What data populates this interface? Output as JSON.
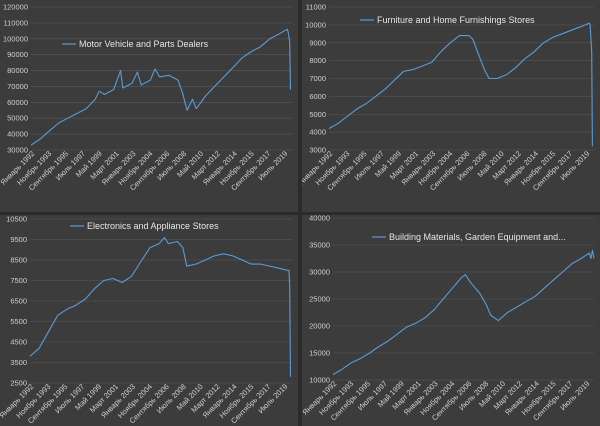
{
  "chart_data": [
    {
      "type": "line",
      "title": "",
      "series": [
        {
          "name": "Motor Vehicle and Parts Dealers"
        }
      ],
      "ylim": [
        30000,
        120000
      ],
      "yticks": [
        30000,
        40000,
        50000,
        60000,
        70000,
        80000,
        90000,
        100000,
        110000,
        120000
      ],
      "x_tick_labels": [
        "Январь 1992",
        "Ноябрь 1993",
        "Сентябрь 1995",
        "Июль 1997",
        "Май 1999",
        "Март 2001",
        "Январь 2003",
        "Ноябрь 2004",
        "Сентябрь 2006",
        "Июль 2008",
        "Май 2010",
        "Март 2012",
        "Январь 2014",
        "Ноябрь 2015",
        "Сентябрь 2017",
        "Июль 2019"
      ],
      "x_range": [
        "1992-01",
        "2020-06"
      ],
      "points": [
        [
          "1992-01",
          33000
        ],
        [
          "1993-01",
          37000
        ],
        [
          "1994-01",
          42000
        ],
        [
          "1995-01",
          47000
        ],
        [
          "1996-01",
          50000
        ],
        [
          "1997-01",
          53000
        ],
        [
          "1998-01",
          56000
        ],
        [
          "1999-01",
          62000
        ],
        [
          "1999-06",
          67000
        ],
        [
          "2000-01",
          65000
        ],
        [
          "2001-01",
          68000
        ],
        [
          "2001-10",
          80000
        ],
        [
          "2002-01",
          69000
        ],
        [
          "2003-01",
          72000
        ],
        [
          "2003-08",
          79000
        ],
        [
          "2004-01",
          71000
        ],
        [
          "2005-01",
          74000
        ],
        [
          "2005-07",
          81000
        ],
        [
          "2006-01",
          76000
        ],
        [
          "2007-01",
          77000
        ],
        [
          "2008-01",
          74000
        ],
        [
          "2008-07",
          66000
        ],
        [
          "2009-01",
          55000
        ],
        [
          "2009-08",
          62000
        ],
        [
          "2010-01",
          56000
        ],
        [
          "2011-01",
          64000
        ],
        [
          "2012-01",
          70000
        ],
        [
          "2013-01",
          76000
        ],
        [
          "2014-01",
          82000
        ],
        [
          "2015-01",
          88000
        ],
        [
          "2016-01",
          92000
        ],
        [
          "2017-01",
          95000
        ],
        [
          "2018-01",
          100000
        ],
        [
          "2019-01",
          103000
        ],
        [
          "2019-12",
          106000
        ],
        [
          "2020-01",
          104000
        ],
        [
          "2020-03",
          98000
        ],
        [
          "2020-04",
          68000
        ]
      ]
    },
    {
      "type": "line",
      "title": "",
      "series": [
        {
          "name": "Furniture and Home Furnishings Stores"
        }
      ],
      "ylim": [
        3000,
        11000
      ],
      "yticks": [
        3000,
        4000,
        5000,
        6000,
        7000,
        8000,
        9000,
        10000,
        11000
      ],
      "x_tick_labels": [
        "Январь 1992",
        "Ноябрь 1993",
        "Сентябрь 1995",
        "Июль 1997",
        "Май 1999",
        "Март 2001",
        "Январь 2003",
        "Ноябрь 2004",
        "Сентябрь 2006",
        "Июль 2008",
        "Май 2010",
        "Март 2012",
        "Январь 2014",
        "Ноябрь 2015",
        "Сентябрь 2017",
        "Июль 2019"
      ],
      "x_range": [
        "1992-01",
        "2020-06"
      ],
      "points": [
        [
          "1992-01",
          4200
        ],
        [
          "1993-01",
          4500
        ],
        [
          "1994-01",
          4900
        ],
        [
          "1995-01",
          5300
        ],
        [
          "1996-01",
          5600
        ],
        [
          "1997-01",
          6000
        ],
        [
          "1998-01",
          6400
        ],
        [
          "1999-01",
          6900
        ],
        [
          "2000-01",
          7400
        ],
        [
          "2001-01",
          7500
        ],
        [
          "2002-01",
          7700
        ],
        [
          "2003-01",
          7900
        ],
        [
          "2004-01",
          8500
        ],
        [
          "2005-01",
          9000
        ],
        [
          "2006-01",
          9400
        ],
        [
          "2007-01",
          9400
        ],
        [
          "2007-06",
          9200
        ],
        [
          "2008-01",
          8400
        ],
        [
          "2008-09",
          7500
        ],
        [
          "2009-03",
          7000
        ],
        [
          "2010-01",
          7000
        ],
        [
          "2011-01",
          7200
        ],
        [
          "2012-01",
          7600
        ],
        [
          "2013-01",
          8100
        ],
        [
          "2014-01",
          8500
        ],
        [
          "2015-01",
          9000
        ],
        [
          "2016-01",
          9300
        ],
        [
          "2017-01",
          9500
        ],
        [
          "2018-01",
          9700
        ],
        [
          "2019-01",
          9900
        ],
        [
          "2019-12",
          10100
        ],
        [
          "2020-01",
          10000
        ],
        [
          "2020-03",
          8500
        ],
        [
          "2020-04",
          3200
        ]
      ]
    },
    {
      "type": "line",
      "title": "",
      "series": [
        {
          "name": "Electronics and Appliance Stores"
        }
      ],
      "ylim": [
        2500,
        10500
      ],
      "yticks": [
        2500,
        3500,
        4500,
        5500,
        6500,
        7500,
        8500,
        9500,
        10500
      ],
      "x_tick_labels": [
        "Январь 1992",
        "Ноябрь 1993",
        "Сентябрь 1995",
        "Июль 1997",
        "Май 1999",
        "Март 2001",
        "Январь 2003",
        "Ноябрь 2004",
        "Сентябрь 2006",
        "Июль 2008",
        "Май 2010",
        "Март 2012",
        "Январь 2014",
        "Ноябрь 2015",
        "Сентябрь 2017",
        "Июль 2019"
      ],
      "x_range": [
        "1992-01",
        "2020-06"
      ],
      "points": [
        [
          "1992-01",
          3800
        ],
        [
          "1993-01",
          4200
        ],
        [
          "1994-01",
          5000
        ],
        [
          "1995-01",
          5800
        ],
        [
          "1996-01",
          6100
        ],
        [
          "1997-01",
          6300
        ],
        [
          "1998-01",
          6600
        ],
        [
          "1999-01",
          7100
        ],
        [
          "2000-01",
          7500
        ],
        [
          "2001-01",
          7600
        ],
        [
          "2002-01",
          7400
        ],
        [
          "2003-01",
          7700
        ],
        [
          "2004-01",
          8400
        ],
        [
          "2005-01",
          9100
        ],
        [
          "2006-01",
          9300
        ],
        [
          "2006-08",
          9600
        ],
        [
          "2007-01",
          9300
        ],
        [
          "2008-01",
          9400
        ],
        [
          "2008-08",
          9100
        ],
        [
          "2009-01",
          8200
        ],
        [
          "2010-01",
          8300
        ],
        [
          "2011-01",
          8500
        ],
        [
          "2012-01",
          8700
        ],
        [
          "2013-01",
          8800
        ],
        [
          "2014-01",
          8700
        ],
        [
          "2015-01",
          8500
        ],
        [
          "2016-01",
          8300
        ],
        [
          "2017-01",
          8300
        ],
        [
          "2018-01",
          8200
        ],
        [
          "2019-01",
          8100
        ],
        [
          "2019-12",
          8000
        ],
        [
          "2020-02",
          8000
        ],
        [
          "2020-03",
          7200
        ],
        [
          "2020-04",
          2800
        ]
      ]
    },
    {
      "type": "line",
      "title": "",
      "series": [
        {
          "name": "Building Materials, Garden Equipment and..."
        }
      ],
      "ylim": [
        10000,
        40000
      ],
      "yticks": [
        10000,
        15000,
        20000,
        25000,
        30000,
        35000,
        40000
      ],
      "x_tick_labels": [
        "Январь 1992",
        "Ноябрь 1993",
        "Сентябрь 1995",
        "Июль 1997",
        "Май 1999",
        "Март 2001",
        "Январь 2003",
        "Ноябрь 2004",
        "Сентябрь 2006",
        "Июль 2008",
        "Май 2010",
        "Март 2012",
        "Январь 2014",
        "Ноябрь 2015",
        "Сентябрь 2017",
        "Июль 2019"
      ],
      "x_range": [
        "1992-01",
        "2020-06"
      ],
      "points": [
        [
          "1992-01",
          11000
        ],
        [
          "1993-01",
          12000
        ],
        [
          "1994-01",
          13200
        ],
        [
          "1995-01",
          14000
        ],
        [
          "1996-01",
          15000
        ],
        [
          "1997-01",
          16200
        ],
        [
          "1998-01",
          17200
        ],
        [
          "1999-01",
          18500
        ],
        [
          "2000-01",
          19800
        ],
        [
          "2001-01",
          20500
        ],
        [
          "2002-01",
          21500
        ],
        [
          "2003-01",
          23000
        ],
        [
          "2004-01",
          25000
        ],
        [
          "2005-01",
          27000
        ],
        [
          "2006-01",
          29000
        ],
        [
          "2006-06",
          29500
        ],
        [
          "2007-01",
          28000
        ],
        [
          "2008-01",
          26000
        ],
        [
          "2008-09",
          24000
        ],
        [
          "2009-03",
          22000
        ],
        [
          "2010-01",
          21000
        ],
        [
          "2011-01",
          22500
        ],
        [
          "2012-01",
          23500
        ],
        [
          "2013-01",
          24500
        ],
        [
          "2014-01",
          25500
        ],
        [
          "2015-01",
          27000
        ],
        [
          "2016-01",
          28500
        ],
        [
          "2017-01",
          30000
        ],
        [
          "2018-01",
          31500
        ],
        [
          "2019-01",
          32500
        ],
        [
          "2019-12",
          33500
        ],
        [
          "2020-02",
          32500
        ],
        [
          "2020-04",
          34000
        ],
        [
          "2020-06",
          32500
        ]
      ]
    }
  ]
}
